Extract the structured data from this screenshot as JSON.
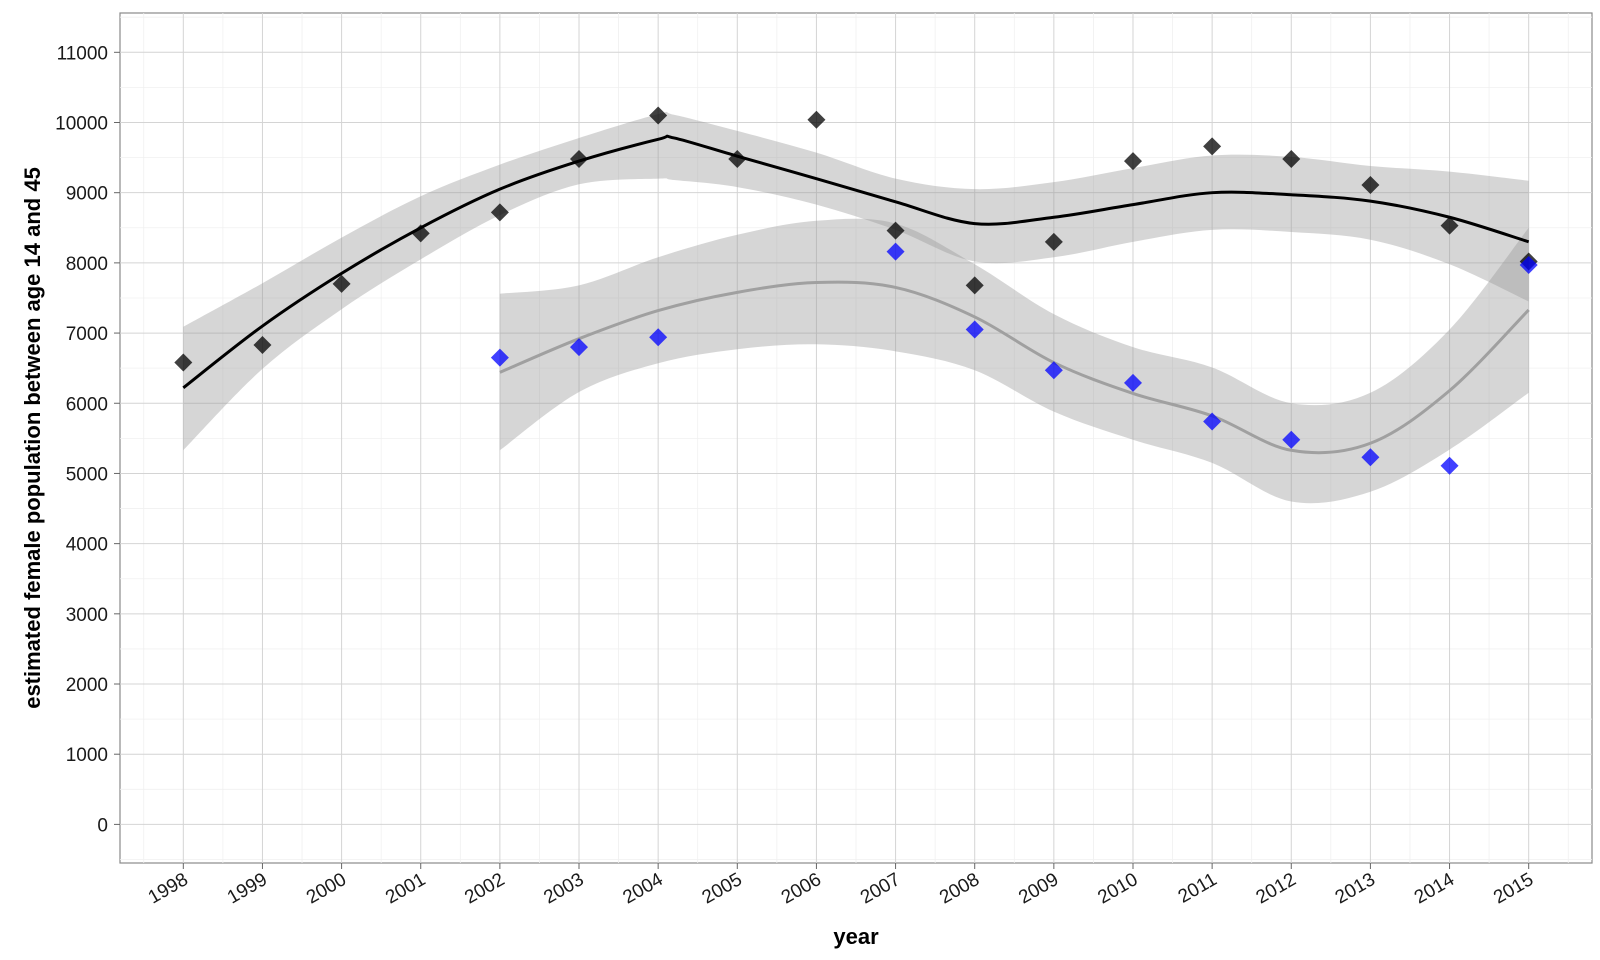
{
  "chart_data": {
    "type": "scatter",
    "title": "",
    "xlabel": "year",
    "ylabel": "estimated female population between age 14 and 45",
    "xlim": [
      1997.2,
      2015.8
    ],
    "ylim": [
      -550,
      11560
    ],
    "x_ticks": [
      "1998",
      "1999",
      "2000",
      "2001",
      "2002",
      "2003",
      "2004",
      "2005",
      "2006",
      "2007",
      "2008",
      "2009",
      "2010",
      "2011",
      "2012",
      "2013",
      "2014",
      "2015"
    ],
    "y_ticks": [
      "0",
      "1000",
      "2000",
      "3000",
      "4000",
      "5000",
      "6000",
      "7000",
      "8000",
      "9000",
      "10000",
      "11000"
    ],
    "grid": true,
    "legend": "none",
    "series": [
      {
        "color": "#000000",
        "points": [
          {
            "x": 1998,
            "y": 6580
          },
          {
            "x": 1999,
            "y": 6830
          },
          {
            "x": 2000,
            "y": 7700
          },
          {
            "x": 2001,
            "y": 8420
          },
          {
            "x": 2002,
            "y": 8720
          },
          {
            "x": 2003,
            "y": 9480
          },
          {
            "x": 2004,
            "y": 10100
          },
          {
            "x": 2005,
            "y": 9480
          },
          {
            "x": 2006,
            "y": 10040
          },
          {
            "x": 2007,
            "y": 8460
          },
          {
            "x": 2008,
            "y": 7680
          },
          {
            "x": 2009,
            "y": 8300
          },
          {
            "x": 2010,
            "y": 9450
          },
          {
            "x": 2011,
            "y": 9660
          },
          {
            "x": 2012,
            "y": 9480
          },
          {
            "x": 2013,
            "y": 9110
          },
          {
            "x": 2014,
            "y": 8530
          },
          {
            "x": 2015,
            "y": 8020
          }
        ],
        "smooth": {
          "line_color": "#000000",
          "x": [
            1998,
            1999,
            2000,
            2001,
            2002,
            2003,
            2004,
            2004.2,
            2005,
            2006,
            2007,
            2008,
            2009,
            2010,
            2011,
            2012,
            2013,
            2014,
            2015
          ],
          "y": [
            6220,
            7100,
            7850,
            8500,
            9050,
            9450,
            9760,
            9780,
            9520,
            9200,
            8870,
            8560,
            8650,
            8830,
            9000,
            8970,
            8880,
            8650,
            8300
          ],
          "upper": [
            7090,
            7710,
            8360,
            8950,
            9400,
            9780,
            10120,
            10110,
            9880,
            9570,
            9200,
            9050,
            9150,
            9350,
            9530,
            9510,
            9380,
            9300,
            9170
          ],
          "lower": [
            5330,
            6490,
            7340,
            8050,
            8680,
            9120,
            9200,
            9180,
            9080,
            8830,
            8470,
            8020,
            8080,
            8300,
            8470,
            8440,
            8330,
            7980,
            7450
          ]
        }
      },
      {
        "color": "#0000ff",
        "points": [
          {
            "x": 2002,
            "y": 6650
          },
          {
            "x": 2003,
            "y": 6800
          },
          {
            "x": 2004,
            "y": 6940
          },
          {
            "x": 2007,
            "y": 8160
          },
          {
            "x": 2008,
            "y": 7050
          },
          {
            "x": 2009,
            "y": 6470
          },
          {
            "x": 2010,
            "y": 6290
          },
          {
            "x": 2011,
            "y": 5740
          },
          {
            "x": 2012,
            "y": 5480
          },
          {
            "x": 2013,
            "y": 5230
          },
          {
            "x": 2014,
            "y": 5110
          },
          {
            "x": 2015,
            "y": 7970
          }
        ],
        "smooth": {
          "line_color": "#a0a0a0",
          "x": [
            2002,
            2003,
            2004,
            2005,
            2006,
            2007,
            2008,
            2009,
            2010,
            2011,
            2012,
            2013,
            2014,
            2015
          ],
          "y": [
            6440,
            6920,
            7320,
            7580,
            7720,
            7650,
            7230,
            6580,
            6140,
            5820,
            5330,
            5430,
            6180,
            7330
          ],
          "upper": [
            7560,
            7680,
            8080,
            8400,
            8600,
            8560,
            7980,
            7270,
            6800,
            6510,
            6000,
            6150,
            7050,
            8500
          ],
          "lower": [
            5330,
            6160,
            6570,
            6770,
            6840,
            6740,
            6470,
            5880,
            5480,
            5150,
            4600,
            4740,
            5340,
            6150
          ]
        }
      }
    ]
  }
}
